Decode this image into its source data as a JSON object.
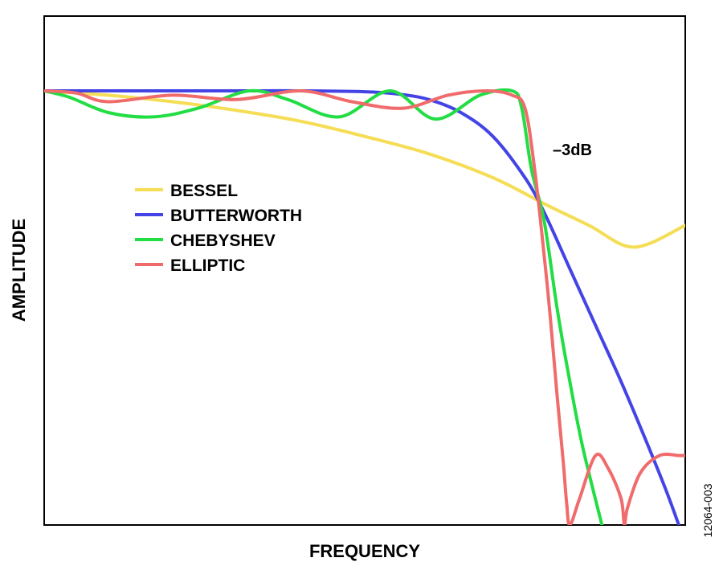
{
  "chart_data": {
    "type": "line",
    "title": "",
    "xlabel": "FREQUENCY",
    "ylabel": "AMPLITUDE",
    "xlim": [
      0,
      1
    ],
    "ylim": [
      0,
      1
    ],
    "grid": false,
    "legend_position": "middle-left",
    "annotation": {
      "text": "–3dB",
      "x": 0.77,
      "y": 0.707
    },
    "figure_id": "12064-003",
    "series": [
      {
        "name": "BESSEL",
        "color": "#f5dd55",
        "x": [
          0,
          0.1,
          0.2,
          0.3,
          0.4,
          0.5,
          0.6,
          0.7,
          0.78,
          0.85,
          0.92,
          1.0
        ],
        "y": [
          1.0,
          0.99,
          0.975,
          0.955,
          0.93,
          0.895,
          0.855,
          0.8,
          0.74,
          0.69,
          0.64,
          0.69
        ]
      },
      {
        "name": "BUTTERWORTH",
        "color": "#4444e6",
        "x": [
          0,
          0.1,
          0.2,
          0.3,
          0.4,
          0.5,
          0.55,
          0.6,
          0.65,
          0.7,
          0.75,
          0.78,
          0.82,
          0.86,
          0.9,
          0.94,
          0.97,
          0.99
        ],
        "y": [
          1.0,
          1.0,
          1.0,
          1.0,
          1.0,
          0.998,
          0.993,
          0.98,
          0.95,
          0.895,
          0.8,
          0.72,
          0.59,
          0.46,
          0.33,
          0.19,
          0.08,
          0.0
        ]
      },
      {
        "name": "CHEBYSHEV",
        "color": "#22dd44",
        "x": [
          0,
          0.04,
          0.1,
          0.17,
          0.24,
          0.32,
          0.38,
          0.46,
          0.54,
          0.61,
          0.68,
          0.73,
          0.745,
          0.76,
          0.78,
          0.8,
          0.82,
          0.84,
          0.87
        ],
        "y": [
          1.0,
          0.985,
          0.95,
          0.94,
          0.96,
          1.0,
          0.98,
          0.94,
          1.0,
          0.935,
          0.99,
          1.0,
          0.96,
          0.82,
          0.7,
          0.5,
          0.33,
          0.18,
          0.0
        ]
      },
      {
        "name": "ELLIPTIC",
        "color": "#f06b6b",
        "x": [
          0,
          0.05,
          0.1,
          0.2,
          0.3,
          0.4,
          0.48,
          0.56,
          0.63,
          0.69,
          0.73,
          0.75,
          0.765,
          0.78,
          0.79,
          0.8,
          0.81,
          0.815,
          0.82,
          0.835,
          0.86,
          0.88,
          0.9,
          0.905,
          0.91,
          0.93,
          0.96,
          0.99,
          1.0
        ],
        "y": [
          1.0,
          0.995,
          0.975,
          0.99,
          0.98,
          1.0,
          0.975,
          0.96,
          0.99,
          1.0,
          0.99,
          0.96,
          0.82,
          0.62,
          0.47,
          0.3,
          0.14,
          0.05,
          0.0,
          0.06,
          0.16,
          0.13,
          0.06,
          0.0,
          0.04,
          0.12,
          0.16,
          0.16,
          0.16
        ]
      }
    ]
  }
}
